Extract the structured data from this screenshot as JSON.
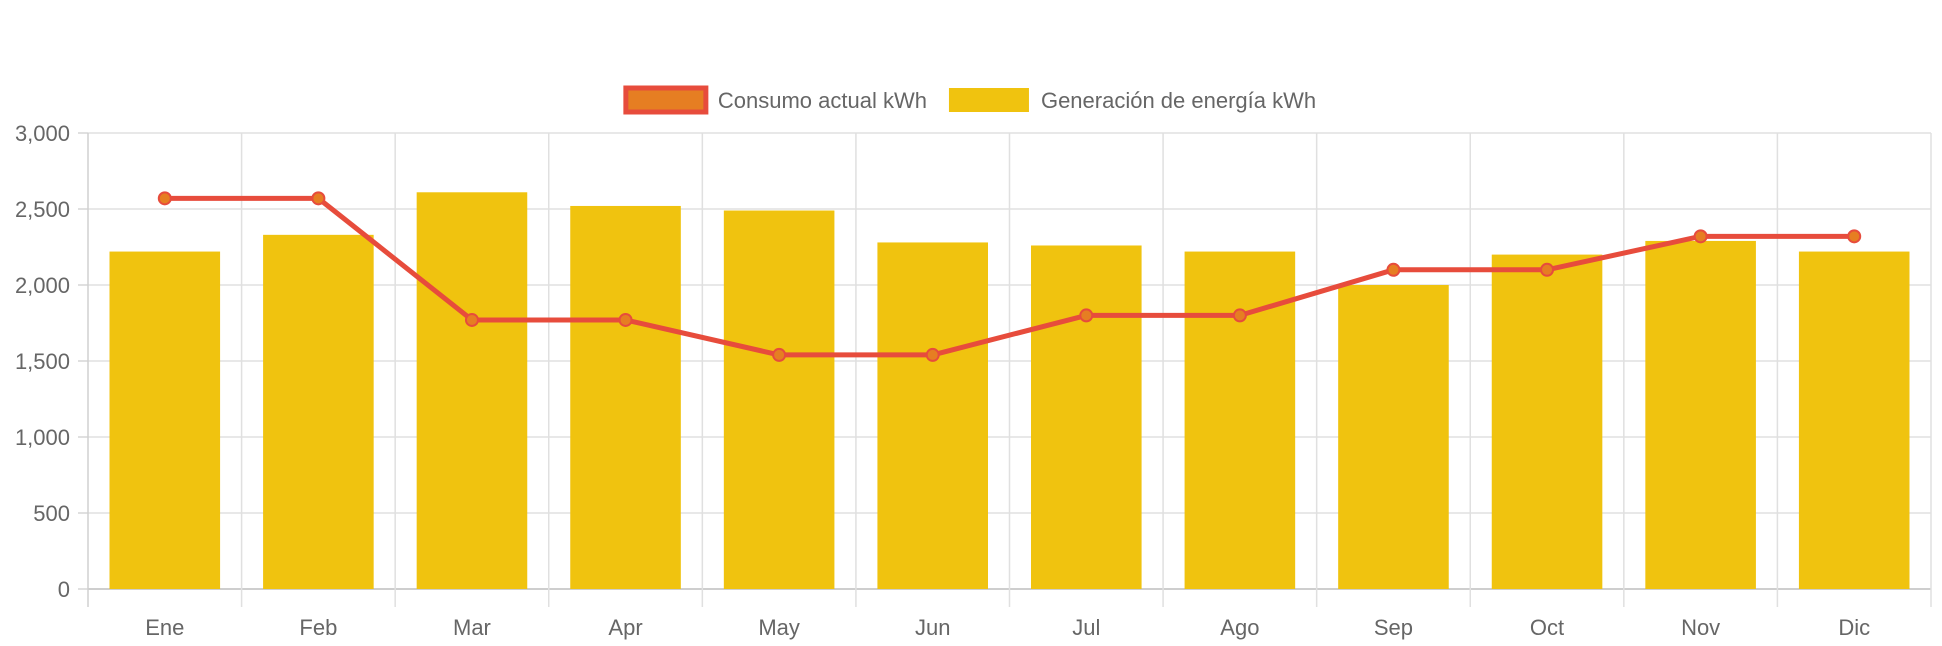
{
  "chart_data": {
    "type": "bar",
    "categories": [
      "Ene",
      "Feb",
      "Mar",
      "Apr",
      "May",
      "Jun",
      "Jul",
      "Ago",
      "Sep",
      "Oct",
      "Nov",
      "Dic"
    ],
    "series": [
      {
        "name": "Generación de energía kWh",
        "type": "bar",
        "color": "#f0c30f",
        "values": [
          2220,
          2330,
          2610,
          2520,
          2490,
          2280,
          2260,
          2220,
          2000,
          2200,
          2290,
          2220
        ]
      },
      {
        "name": "Consumo actual kWh",
        "type": "line",
        "color": "#e74c3c",
        "marker_fill": "#e67e22",
        "values": [
          2570,
          2570,
          1770,
          1770,
          1540,
          1540,
          1800,
          1800,
          2100,
          2100,
          2320,
          2320
        ]
      }
    ],
    "legend": {
      "position": "top",
      "items": [
        {
          "label": "Consumo actual kWh",
          "fill": "#e67e22",
          "stroke": "#e74c3c"
        },
        {
          "label": "Generación de energía kWh",
          "fill": "#f0c30f",
          "stroke": "#f0c30f"
        }
      ]
    },
    "ylim": [
      0,
      3000
    ],
    "yticks": [
      0,
      500,
      1000,
      1500,
      2000,
      2500,
      3000
    ],
    "ytick_labels": [
      "0",
      "500",
      "1,000",
      "1,500",
      "2,000",
      "2,500",
      "3,000"
    ],
    "grid": true,
    "title": "",
    "xlabel": "",
    "ylabel": ""
  }
}
